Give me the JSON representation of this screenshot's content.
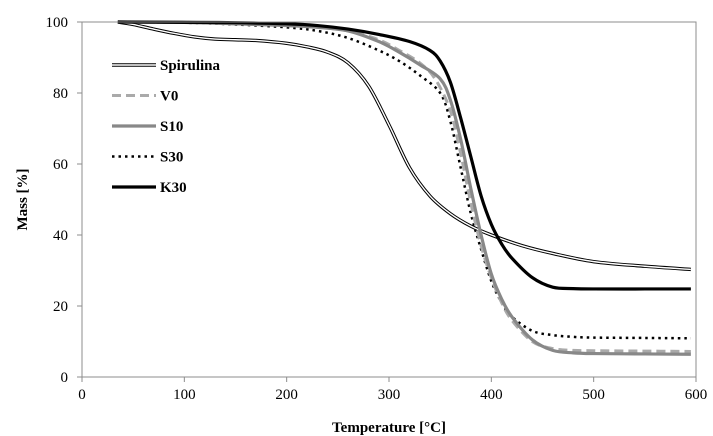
{
  "chart_data": {
    "type": "line",
    "title": "",
    "xlabel": "Temperature  [°C]",
    "ylabel": "Mass [%]",
    "xlim": [
      0,
      600
    ],
    "ylim": [
      0,
      100
    ],
    "xticks": [
      0,
      100,
      200,
      300,
      400,
      500,
      600
    ],
    "yticks": [
      0,
      20,
      40,
      60,
      80,
      100
    ],
    "xtick_labels": [
      "0",
      "100",
      "200",
      "300",
      "400",
      "500",
      "600"
    ],
    "ytick_labels": [
      "0",
      "20",
      "40",
      "60",
      "80",
      "100"
    ],
    "grid": false,
    "legend_position": "top-left",
    "series": [
      {
        "name": "Spirulina",
        "style": "double-line",
        "color": "#000000",
        "x": [
          35,
          50,
          70,
          90,
          110,
          130,
          150,
          170,
          200,
          220,
          240,
          260,
          280,
          300,
          320,
          340,
          360,
          380,
          400,
          430,
          460,
          500,
          550,
          595
        ],
        "y": [
          100,
          99.3,
          98,
          96.8,
          95.8,
          95.2,
          95,
          94.8,
          94,
          93,
          91.5,
          88.5,
          82,
          71,
          59,
          51,
          46,
          42.5,
          40,
          37,
          34.8,
          32.5,
          31.2,
          30.3
        ]
      },
      {
        "name": "V0",
        "style": "dashed",
        "color": "#aaaaaa",
        "x": [
          35,
          100,
          150,
          200,
          230,
          260,
          290,
          310,
          330,
          345,
          360,
          370,
          380,
          390,
          400,
          410,
          420,
          440,
          460,
          480,
          500,
          550,
          595
        ],
        "y": [
          100,
          99.9,
          99.5,
          99,
          98.5,
          97.5,
          95,
          92,
          88.5,
          84,
          75,
          63,
          49,
          37,
          28,
          21,
          16,
          10,
          8,
          7.5,
          7.4,
          7.3,
          7.2
        ]
      },
      {
        "name": "S10",
        "style": "solid-thick",
        "color": "#888888",
        "x": [
          35,
          100,
          150,
          200,
          230,
          260,
          290,
          310,
          330,
          350,
          360,
          370,
          380,
          390,
          400,
          410,
          420,
          440,
          460,
          480,
          500,
          550,
          595
        ],
        "y": [
          100,
          99.9,
          99.5,
          99,
          98.5,
          97.5,
          94.5,
          91.5,
          88,
          84,
          78,
          67,
          53,
          40,
          29,
          22,
          17,
          10.5,
          7.5,
          6.8,
          6.6,
          6.5,
          6.4
        ]
      },
      {
        "name": "S30",
        "style": "dotted",
        "color": "#000000",
        "x": [
          35,
          100,
          150,
          200,
          230,
          260,
          290,
          310,
          330,
          350,
          360,
          370,
          380,
          390,
          400,
          410,
          420,
          440,
          460,
          480,
          500,
          550,
          595
        ],
        "y": [
          100,
          99.8,
          99.3,
          98.5,
          97.5,
          95.5,
          92,
          89,
          85,
          80,
          72,
          59,
          46,
          36,
          27,
          21,
          17,
          13,
          11.8,
          11.3,
          11.1,
          11,
          10.9
        ]
      },
      {
        "name": "K30",
        "style": "solid-thick",
        "color": "#000000",
        "x": [
          35,
          100,
          150,
          200,
          230,
          260,
          290,
          320,
          340,
          350,
          360,
          370,
          380,
          390,
          400,
          410,
          420,
          440,
          460,
          480,
          500,
          550,
          595
        ],
        "y": [
          100,
          99.9,
          99.8,
          99.5,
          99,
          98,
          96.5,
          94.5,
          92,
          89,
          83,
          73,
          62,
          51,
          43,
          37.5,
          33.5,
          28,
          25.3,
          24.9,
          24.8,
          24.8,
          24.8
        ]
      }
    ]
  }
}
